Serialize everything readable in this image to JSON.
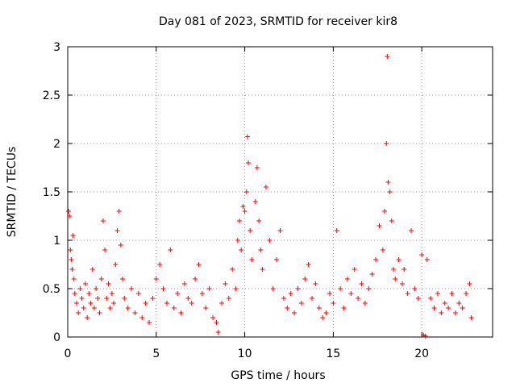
{
  "chart_data": {
    "type": "scatter",
    "title": "Day 081 of 2023, SRMTID for receiver kir8",
    "xlabel": "GPS time / hours",
    "ylabel": "SRMTID / TECUs",
    "xlim": [
      0,
      24
    ],
    "ylim": [
      0,
      3
    ],
    "xticks": [
      0,
      5,
      10,
      15,
      20
    ],
    "yticks": [
      0,
      0.5,
      1,
      1.5,
      2,
      2.5,
      3
    ],
    "xtick_labels": [
      "0",
      "5",
      "10",
      "15",
      "20"
    ],
    "ytick_labels": [
      "0",
      "0.5",
      "1",
      "1.5",
      "2",
      "2.5",
      "3"
    ],
    "grid": true,
    "legend": "none",
    "marker": "+",
    "color": "#ff0000",
    "series": [
      {
        "name": "kir8",
        "points": [
          [
            0.05,
            1.3
          ],
          [
            0.1,
            1.25
          ],
          [
            0.15,
            0.9
          ],
          [
            0.2,
            0.8
          ],
          [
            0.25,
            0.7
          ],
          [
            0.3,
            1.05
          ],
          [
            0.35,
            0.6
          ],
          [
            0.4,
            0.45
          ],
          [
            0.5,
            0.35
          ],
          [
            0.6,
            0.25
          ],
          [
            0.7,
            0.5
          ],
          [
            0.8,
            0.4
          ],
          [
            0.9,
            0.3
          ],
          [
            1.0,
            0.55
          ],
          [
            1.1,
            0.2
          ],
          [
            1.2,
            0.45
          ],
          [
            1.3,
            0.35
          ],
          [
            1.4,
            0.7
          ],
          [
            1.5,
            0.3
          ],
          [
            1.6,
            0.5
          ],
          [
            1.7,
            0.4
          ],
          [
            1.8,
            0.25
          ],
          [
            1.9,
            0.6
          ],
          [
            2.0,
            1.2
          ],
          [
            2.1,
            0.9
          ],
          [
            2.2,
            0.4
          ],
          [
            2.3,
            0.55
          ],
          [
            2.4,
            0.3
          ],
          [
            2.5,
            0.45
          ],
          [
            2.6,
            0.35
          ],
          [
            2.7,
            0.75
          ],
          [
            2.8,
            1.1
          ],
          [
            2.9,
            1.3
          ],
          [
            3.0,
            0.95
          ],
          [
            3.1,
            0.6
          ],
          [
            3.2,
            0.4
          ],
          [
            3.4,
            0.3
          ],
          [
            3.6,
            0.5
          ],
          [
            3.8,
            0.25
          ],
          [
            4.0,
            0.45
          ],
          [
            4.2,
            0.2
          ],
          [
            4.4,
            0.35
          ],
          [
            4.6,
            0.15
          ],
          [
            4.8,
            0.4
          ],
          [
            5.0,
            0.6
          ],
          [
            5.2,
            0.75
          ],
          [
            5.4,
            0.5
          ],
          [
            5.6,
            0.35
          ],
          [
            5.8,
            0.9
          ],
          [
            6.0,
            0.3
          ],
          [
            6.2,
            0.45
          ],
          [
            6.4,
            0.25
          ],
          [
            6.6,
            0.55
          ],
          [
            6.8,
            0.4
          ],
          [
            7.0,
            0.35
          ],
          [
            7.2,
            0.6
          ],
          [
            7.4,
            0.75
          ],
          [
            7.6,
            0.45
          ],
          [
            7.8,
            0.3
          ],
          [
            8.0,
            0.5
          ],
          [
            8.2,
            0.2
          ],
          [
            8.4,
            0.15
          ],
          [
            8.5,
            0.05
          ],
          [
            8.7,
            0.35
          ],
          [
            8.9,
            0.55
          ],
          [
            9.1,
            0.4
          ],
          [
            9.3,
            0.7
          ],
          [
            9.5,
            0.5
          ],
          [
            9.6,
            1.0
          ],
          [
            9.7,
            1.2
          ],
          [
            9.8,
            0.9
          ],
          [
            9.9,
            1.35
          ],
          [
            10.0,
            1.3
          ],
          [
            10.1,
            1.5
          ],
          [
            10.15,
            2.07
          ],
          [
            10.2,
            1.8
          ],
          [
            10.3,
            1.1
          ],
          [
            10.4,
            0.8
          ],
          [
            10.6,
            1.4
          ],
          [
            10.7,
            1.75
          ],
          [
            10.8,
            1.2
          ],
          [
            10.9,
            0.9
          ],
          [
            11.0,
            0.7
          ],
          [
            11.2,
            1.55
          ],
          [
            11.4,
            1.0
          ],
          [
            11.6,
            0.5
          ],
          [
            11.8,
            0.8
          ],
          [
            12.0,
            1.1
          ],
          [
            12.2,
            0.4
          ],
          [
            12.4,
            0.3
          ],
          [
            12.6,
            0.45
          ],
          [
            12.8,
            0.25
          ],
          [
            13.0,
            0.5
          ],
          [
            13.2,
            0.35
          ],
          [
            13.4,
            0.6
          ],
          [
            13.6,
            0.75
          ],
          [
            13.8,
            0.4
          ],
          [
            14.0,
            0.55
          ],
          [
            14.2,
            0.3
          ],
          [
            14.4,
            0.2
          ],
          [
            14.6,
            0.25
          ],
          [
            14.8,
            0.45
          ],
          [
            15.0,
            0.35
          ],
          [
            15.2,
            1.1
          ],
          [
            15.4,
            0.5
          ],
          [
            15.6,
            0.3
          ],
          [
            15.8,
            0.6
          ],
          [
            16.0,
            0.45
          ],
          [
            16.2,
            0.7
          ],
          [
            16.4,
            0.4
          ],
          [
            16.6,
            0.55
          ],
          [
            16.8,
            0.35
          ],
          [
            17.0,
            0.5
          ],
          [
            17.2,
            0.65
          ],
          [
            17.4,
            0.8
          ],
          [
            17.6,
            1.15
          ],
          [
            17.8,
            0.9
          ],
          [
            17.9,
            1.3
          ],
          [
            18.0,
            2.0
          ],
          [
            18.05,
            2.9
          ],
          [
            18.1,
            1.6
          ],
          [
            18.2,
            1.5
          ],
          [
            18.3,
            1.2
          ],
          [
            18.4,
            0.7
          ],
          [
            18.5,
            0.6
          ],
          [
            18.7,
            0.8
          ],
          [
            18.9,
            0.55
          ],
          [
            19.0,
            0.7
          ],
          [
            19.2,
            0.45
          ],
          [
            19.4,
            1.1
          ],
          [
            19.6,
            0.5
          ],
          [
            19.8,
            0.4
          ],
          [
            20.0,
            0.85
          ],
          [
            20.1,
            0.02
          ],
          [
            20.2,
            0.01
          ],
          [
            20.3,
            0.8
          ],
          [
            20.5,
            0.4
          ],
          [
            20.7,
            0.3
          ],
          [
            20.9,
            0.45
          ],
          [
            21.1,
            0.25
          ],
          [
            21.3,
            0.35
          ],
          [
            21.5,
            0.3
          ],
          [
            21.7,
            0.45
          ],
          [
            21.9,
            0.25
          ],
          [
            22.1,
            0.35
          ],
          [
            22.3,
            0.3
          ],
          [
            22.5,
            0.45
          ],
          [
            22.7,
            0.55
          ],
          [
            22.8,
            0.2
          ]
        ]
      }
    ]
  }
}
